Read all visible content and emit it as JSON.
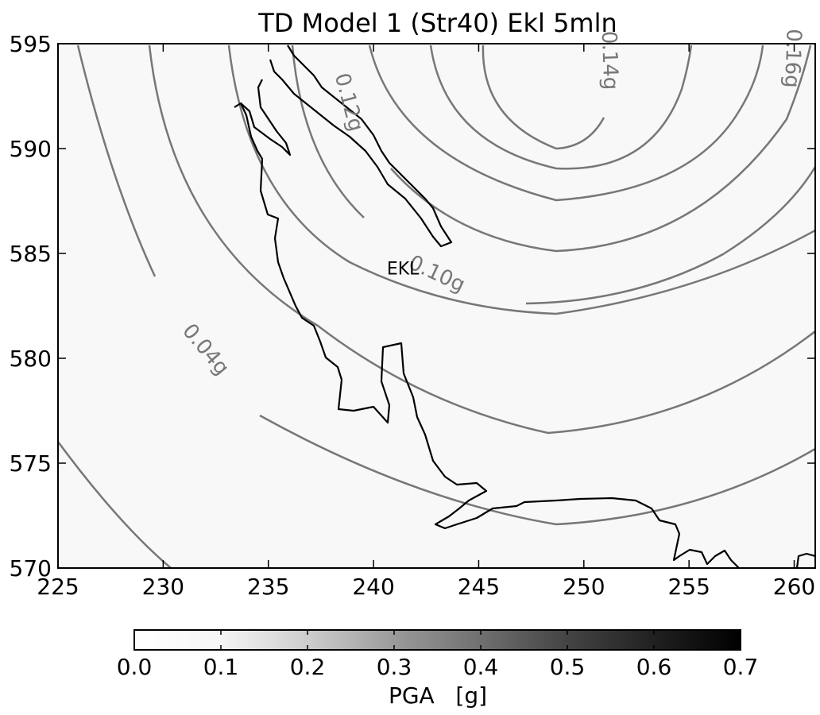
{
  "chart_data": {
    "type": "contour",
    "title": "TD Model 1 (Str40) Ekl 5mln",
    "xlim": [
      225,
      261
    ],
    "ylim": [
      570,
      595
    ],
    "x_ticks": [
      "225",
      "230",
      "235",
      "240",
      "245",
      "250",
      "255",
      "260"
    ],
    "y_ticks": [
      "570",
      "575",
      "580",
      "585",
      "590",
      "595"
    ],
    "contour_labels": [
      {
        "text": "0.04g",
        "x": 232.0,
        "y": 580.4,
        "angle": 50
      },
      {
        "text": "0.10g",
        "x": 243.0,
        "y": 584.0,
        "angle": 25
      },
      {
        "text": "0.12g",
        "x": 238.8,
        "y": 592.2,
        "angle": 75
      },
      {
        "text": "0.14g",
        "x": 251.2,
        "y": 594.2,
        "angle": 88
      },
      {
        "text": "0.16g",
        "x": 259.9,
        "y": 594.3,
        "angle": 92
      }
    ],
    "site": {
      "label": "EKL",
      "x": 241.4,
      "y": 584.3
    },
    "colorbar": {
      "label": "PGA   [g]",
      "range": [
        0.0,
        0.7
      ],
      "ticks": [
        "0.0",
        "0.1",
        "0.2",
        "0.3",
        "0.4",
        "0.5",
        "0.6",
        "0.7"
      ]
    }
  }
}
